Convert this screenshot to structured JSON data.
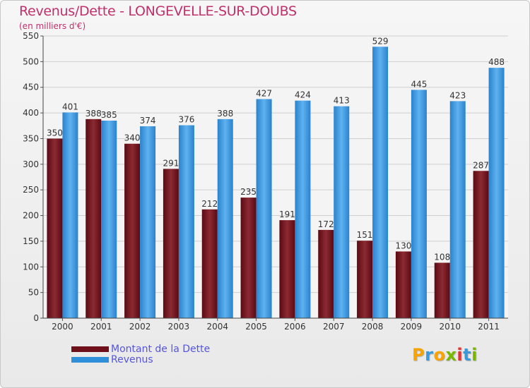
{
  "header": {
    "title": "Revenus/Dette - LONGEVELLE-SUR-DOUBS",
    "subtitle": "(en milliers d'€)"
  },
  "colors": {
    "dette": "#6e0f1a",
    "dette_light": "#8c2a32",
    "revenus": "#2f8fd8",
    "revenus_light": "#5aaeee",
    "grid": "#cfcfcf",
    "axis_text": "#333333",
    "title": "#c0306a",
    "legend_text": "#5555dd"
  },
  "chart_data": {
    "type": "bar",
    "title": "Revenus/Dette - LONGEVELLE-SUR-DOUBS",
    "subtitle": "(en milliers d'€)",
    "xlabel": "",
    "ylabel": "",
    "categories": [
      "2000",
      "2001",
      "2002",
      "2003",
      "2004",
      "2005",
      "2006",
      "2007",
      "2008",
      "2009",
      "2010",
      "2011"
    ],
    "series": [
      {
        "name": "Montant de la Dette",
        "values": [
          350,
          388,
          340,
          291,
          212,
          235,
          191,
          172,
          151,
          130,
          108,
          287
        ]
      },
      {
        "name": "Revenus",
        "values": [
          401,
          385,
          374,
          376,
          388,
          427,
          424,
          413,
          529,
          445,
          423,
          488
        ]
      }
    ],
    "ylim": [
      0,
      550
    ],
    "yticks": [
      0,
      50,
      100,
      150,
      200,
      250,
      300,
      350,
      400,
      450,
      500,
      550
    ],
    "grid": true,
    "legend": "bottom-left",
    "data_labels": true
  },
  "legend": {
    "items": [
      {
        "label": "Montant de la Dette",
        "color": "#6e0f1a"
      },
      {
        "label": "Revenus",
        "color": "#2f8fd8"
      }
    ]
  },
  "logo": {
    "letters": [
      "P",
      "r",
      "o",
      "x",
      "i",
      "t",
      "i"
    ],
    "colors": [
      "#f7a300",
      "#3a9ad9",
      "#f7a300",
      "#7ab800",
      "#e8312f",
      "#3a9ad9",
      "#7ab800"
    ]
  }
}
